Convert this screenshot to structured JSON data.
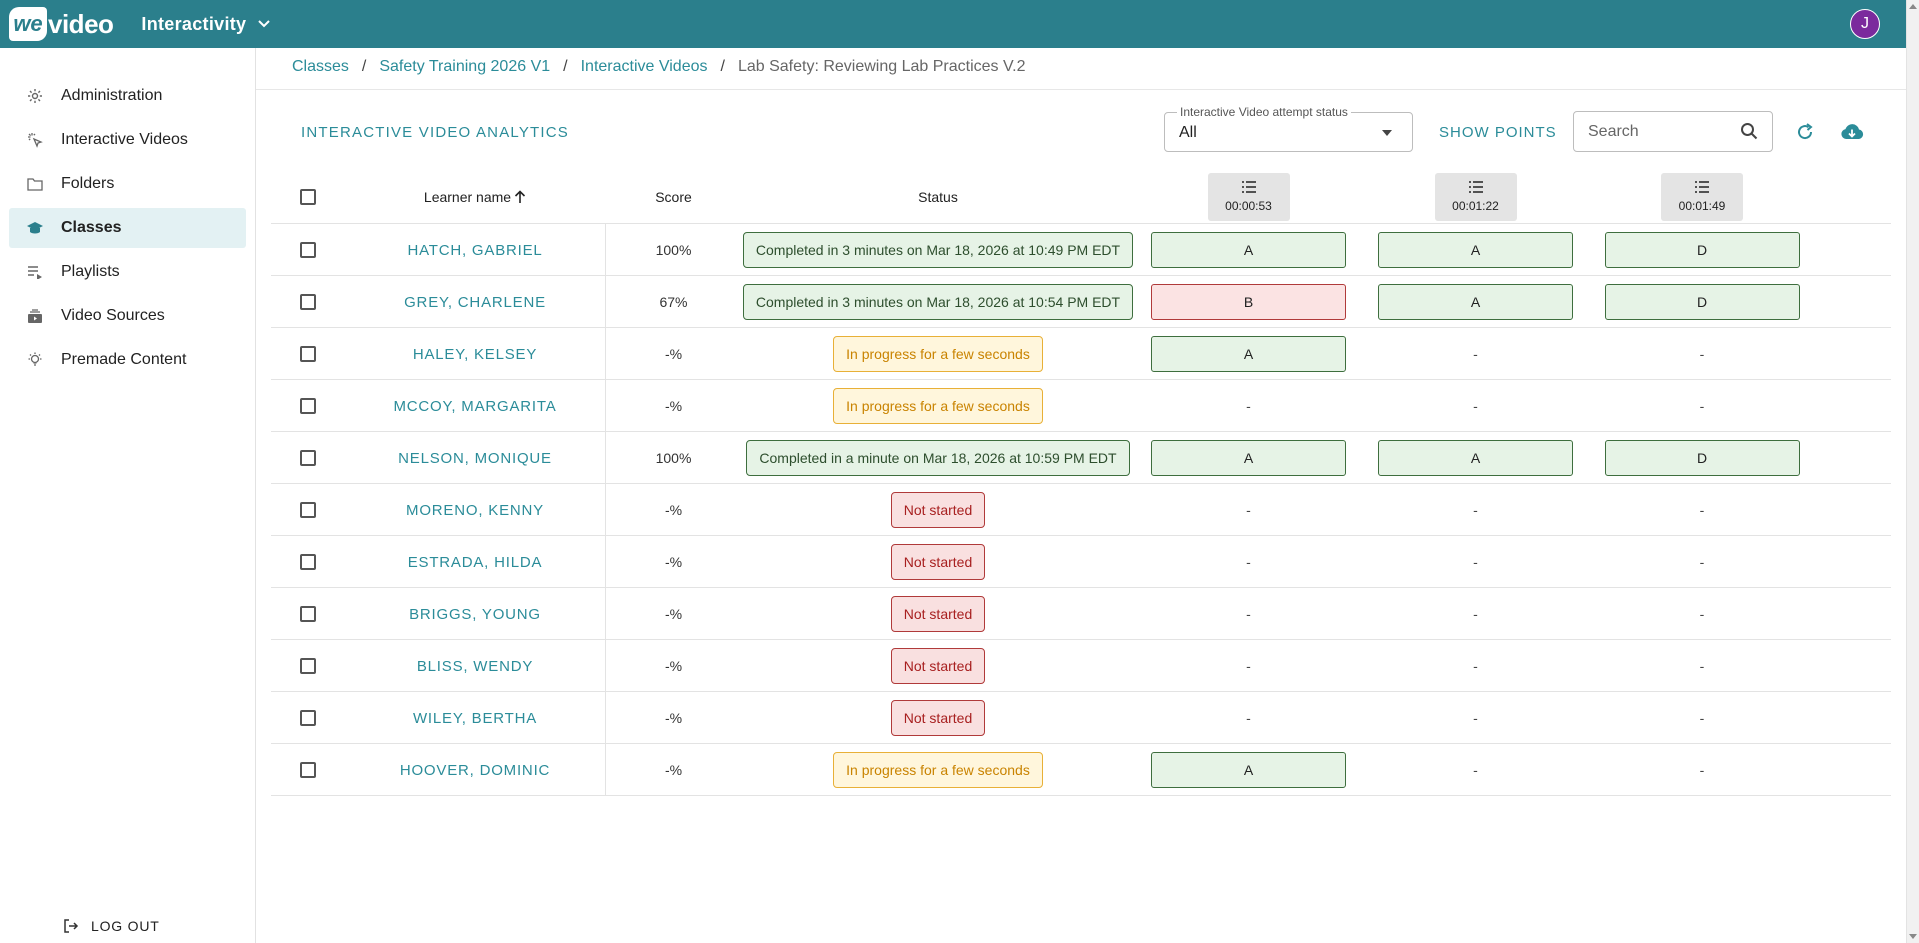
{
  "header": {
    "logo_we": "we",
    "logo_video": "video",
    "app_title": "Interactivity",
    "avatar_initial": "J"
  },
  "sidebar": {
    "items": [
      {
        "label": "Administration",
        "icon": "gear-icon",
        "active": false
      },
      {
        "label": "Interactive Videos",
        "icon": "cursor-click-icon",
        "active": false
      },
      {
        "label": "Folders",
        "icon": "folder-icon",
        "active": false
      },
      {
        "label": "Classes",
        "icon": "graduation-cap-icon",
        "active": true
      },
      {
        "label": "Playlists",
        "icon": "playlist-icon",
        "active": false
      },
      {
        "label": "Video Sources",
        "icon": "video-library-icon",
        "active": false
      },
      {
        "label": "Premade Content",
        "icon": "lightbulb-icon",
        "active": false
      }
    ],
    "logout_label": "LOG OUT"
  },
  "breadcrumb": {
    "items": [
      "Classes",
      "Safety Training 2026 V1",
      "Interactive Videos"
    ],
    "current": "Lab Safety: Reviewing Lab Practices V.2",
    "separator": "/"
  },
  "toolbar": {
    "section_title": "INTERACTIVE VIDEO ANALYTICS",
    "status_filter_legend": "Interactive Video attempt status",
    "status_filter_value": "All",
    "show_points_label": "SHOW POINTS",
    "search_placeholder": "Search"
  },
  "table": {
    "headers": {
      "learner_name": "Learner name",
      "score": "Score",
      "status": "Status",
      "questions": [
        "00:00:53",
        "00:01:22",
        "00:01:49"
      ]
    },
    "rows": [
      {
        "name": "HATCH, GABRIEL",
        "score": "100%",
        "status": "Completed in 3 minutes on Mar 18, 2026 at 10:49 PM EDT",
        "status_type": "completed",
        "answers": [
          {
            "v": "A",
            "t": "correct"
          },
          {
            "v": "A",
            "t": "correct"
          },
          {
            "v": "D",
            "t": "correct"
          }
        ]
      },
      {
        "name": "GREY, CHARLENE",
        "score": "67%",
        "status": "Completed in 3 minutes on Mar 18, 2026 at 10:54 PM EDT",
        "status_type": "completed",
        "answers": [
          {
            "v": "B",
            "t": "wrong"
          },
          {
            "v": "A",
            "t": "correct"
          },
          {
            "v": "D",
            "t": "correct"
          }
        ]
      },
      {
        "name": "HALEY, KELSEY",
        "score": "-%",
        "status": "In progress for a few seconds",
        "status_type": "inprogress",
        "answers": [
          {
            "v": "A",
            "t": "correct"
          },
          {
            "v": "-",
            "t": "none"
          },
          {
            "v": "-",
            "t": "none"
          }
        ]
      },
      {
        "name": "MCCOY, MARGARITA",
        "score": "-%",
        "status": "In progress for a few seconds",
        "status_type": "inprogress",
        "answers": [
          {
            "v": "-",
            "t": "none"
          },
          {
            "v": "-",
            "t": "none"
          },
          {
            "v": "-",
            "t": "none"
          }
        ]
      },
      {
        "name": "NELSON, MONIQUE",
        "score": "100%",
        "status": "Completed in a minute on Mar 18, 2026 at 10:59 PM EDT",
        "status_type": "completed",
        "answers": [
          {
            "v": "A",
            "t": "correct"
          },
          {
            "v": "A",
            "t": "correct"
          },
          {
            "v": "D",
            "t": "correct"
          }
        ]
      },
      {
        "name": "MORENO, KENNY",
        "score": "-%",
        "status": "Not started",
        "status_type": "notstarted",
        "answers": [
          {
            "v": "-",
            "t": "none"
          },
          {
            "v": "-",
            "t": "none"
          },
          {
            "v": "-",
            "t": "none"
          }
        ]
      },
      {
        "name": "ESTRADA, HILDA",
        "score": "-%",
        "status": "Not started",
        "status_type": "notstarted",
        "answers": [
          {
            "v": "-",
            "t": "none"
          },
          {
            "v": "-",
            "t": "none"
          },
          {
            "v": "-",
            "t": "none"
          }
        ]
      },
      {
        "name": "BRIGGS, YOUNG",
        "score": "-%",
        "status": "Not started",
        "status_type": "notstarted",
        "answers": [
          {
            "v": "-",
            "t": "none"
          },
          {
            "v": "-",
            "t": "none"
          },
          {
            "v": "-",
            "t": "none"
          }
        ]
      },
      {
        "name": "BLISS, WENDY",
        "score": "-%",
        "status": "Not started",
        "status_type": "notstarted",
        "answers": [
          {
            "v": "-",
            "t": "none"
          },
          {
            "v": "-",
            "t": "none"
          },
          {
            "v": "-",
            "t": "none"
          }
        ]
      },
      {
        "name": "WILEY, BERTHA",
        "score": "-%",
        "status": "Not started",
        "status_type": "notstarted",
        "answers": [
          {
            "v": "-",
            "t": "none"
          },
          {
            "v": "-",
            "t": "none"
          },
          {
            "v": "-",
            "t": "none"
          }
        ]
      },
      {
        "name": "HOOVER, DOMINIC",
        "score": "-%",
        "status": "In progress for a few seconds",
        "status_type": "inprogress",
        "answers": [
          {
            "v": "A",
            "t": "correct"
          },
          {
            "v": "-",
            "t": "none"
          },
          {
            "v": "-",
            "t": "none"
          }
        ]
      }
    ]
  },
  "colors": {
    "brand": "#2b7f8c",
    "link": "#2b8c99",
    "avatar": "#7b2a9d"
  }
}
